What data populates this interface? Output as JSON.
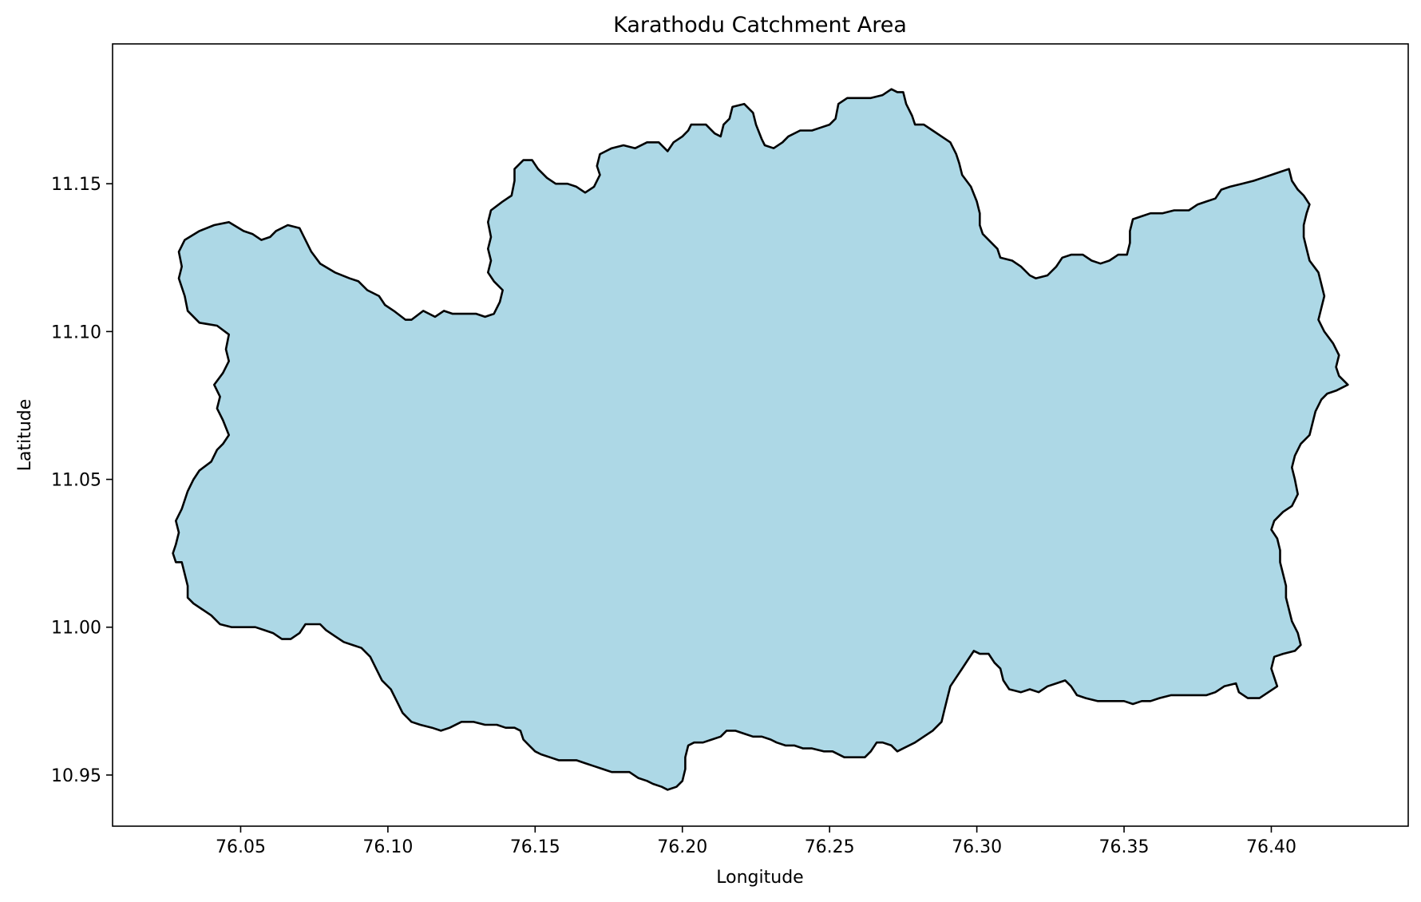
{
  "chart_data": {
    "type": "map",
    "title": "Karathodu Catchment Area",
    "xlabel": "Longitude",
    "ylabel": "Latitude",
    "xlim": [
      76.0065,
      76.4465
    ],
    "ylim": [
      10.9327,
      11.1973
    ],
    "x_ticks": [
      {
        "value": 76.05,
        "label": "76.05"
      },
      {
        "value": 76.1,
        "label": "76.10"
      },
      {
        "value": 76.15,
        "label": "76.15"
      },
      {
        "value": 76.2,
        "label": "76.20"
      },
      {
        "value": 76.25,
        "label": "76.25"
      },
      {
        "value": 76.3,
        "label": "76.30"
      },
      {
        "value": 76.35,
        "label": "76.35"
      },
      {
        "value": 76.4,
        "label": "76.40"
      }
    ],
    "y_ticks": [
      {
        "value": 10.95,
        "label": "10.95"
      },
      {
        "value": 11.0,
        "label": "11.00"
      },
      {
        "value": 11.05,
        "label": "11.05"
      },
      {
        "value": 11.1,
        "label": "11.10"
      },
      {
        "value": 11.15,
        "label": "11.15"
      }
    ],
    "grid": false,
    "fill_color": "#add8e6",
    "edge_color": "#000000",
    "boundary": [
      [
        76.028,
        11.036
      ],
      [
        76.03,
        11.04
      ],
      [
        76.032,
        11.046
      ],
      [
        76.034,
        11.05
      ],
      [
        76.036,
        11.053
      ],
      [
        76.04,
        11.056
      ],
      [
        76.042,
        11.06
      ],
      [
        76.044,
        11.062
      ],
      [
        76.046,
        11.065
      ],
      [
        76.044,
        11.07
      ],
      [
        76.042,
        11.074
      ],
      [
        76.043,
        11.078
      ],
      [
        76.041,
        11.082
      ],
      [
        76.044,
        11.086
      ],
      [
        76.046,
        11.09
      ],
      [
        76.045,
        11.094
      ],
      [
        76.046,
        11.099
      ],
      [
        76.042,
        11.102
      ],
      [
        76.036,
        11.103
      ],
      [
        76.032,
        11.107
      ],
      [
        76.031,
        11.112
      ],
      [
        76.029,
        11.118
      ],
      [
        76.03,
        11.122
      ],
      [
        76.029,
        11.127
      ],
      [
        76.031,
        11.131
      ],
      [
        76.036,
        11.134
      ],
      [
        76.041,
        11.136
      ],
      [
        76.046,
        11.137
      ],
      [
        76.051,
        11.134
      ],
      [
        76.054,
        11.133
      ],
      [
        76.057,
        11.131
      ],
      [
        76.06,
        11.132
      ],
      [
        76.062,
        11.134
      ],
      [
        76.066,
        11.136
      ],
      [
        76.07,
        11.135
      ],
      [
        76.072,
        11.131
      ],
      [
        76.074,
        11.127
      ],
      [
        76.077,
        11.123
      ],
      [
        76.082,
        11.12
      ],
      [
        76.087,
        11.118
      ],
      [
        76.09,
        11.117
      ],
      [
        76.093,
        11.114
      ],
      [
        76.097,
        11.112
      ],
      [
        76.099,
        11.109
      ],
      [
        76.102,
        11.107
      ],
      [
        76.106,
        11.104
      ],
      [
        76.108,
        11.104
      ],
      [
        76.112,
        11.107
      ],
      [
        76.116,
        11.105
      ],
      [
        76.119,
        11.107
      ],
      [
        76.122,
        11.106
      ],
      [
        76.126,
        11.106
      ],
      [
        76.13,
        11.106
      ],
      [
        76.133,
        11.105
      ],
      [
        76.136,
        11.106
      ],
      [
        76.138,
        11.11
      ],
      [
        76.139,
        11.114
      ],
      [
        76.136,
        11.117
      ],
      [
        76.134,
        11.12
      ],
      [
        76.135,
        11.124
      ],
      [
        76.134,
        11.128
      ],
      [
        76.135,
        11.132
      ],
      [
        76.134,
        11.137
      ],
      [
        76.135,
        11.141
      ],
      [
        76.139,
        11.144
      ],
      [
        76.142,
        11.146
      ],
      [
        76.143,
        11.151
      ],
      [
        76.143,
        11.155
      ],
      [
        76.146,
        11.158
      ],
      [
        76.149,
        11.158
      ],
      [
        76.151,
        11.155
      ],
      [
        76.154,
        11.152
      ],
      [
        76.157,
        11.15
      ],
      [
        76.161,
        11.15
      ],
      [
        76.164,
        11.149
      ],
      [
        76.167,
        11.147
      ],
      [
        76.17,
        11.149
      ],
      [
        76.172,
        11.153
      ],
      [
        76.171,
        11.156
      ],
      [
        76.172,
        11.16
      ],
      [
        76.176,
        11.162
      ],
      [
        76.18,
        11.163
      ],
      [
        76.184,
        11.162
      ],
      [
        76.188,
        11.164
      ],
      [
        76.192,
        11.164
      ],
      [
        76.195,
        11.161
      ],
      [
        76.197,
        11.164
      ],
      [
        76.2,
        11.166
      ],
      [
        76.202,
        11.168
      ],
      [
        76.203,
        11.17
      ],
      [
        76.208,
        11.17
      ],
      [
        76.211,
        11.167
      ],
      [
        76.213,
        11.166
      ],
      [
        76.214,
        11.17
      ],
      [
        76.216,
        11.172
      ],
      [
        76.217,
        11.176
      ],
      [
        76.221,
        11.177
      ],
      [
        76.224,
        11.174
      ],
      [
        76.225,
        11.17
      ],
      [
        76.227,
        11.165
      ],
      [
        76.228,
        11.163
      ],
      [
        76.231,
        11.162
      ],
      [
        76.234,
        11.164
      ],
      [
        76.236,
        11.166
      ],
      [
        76.24,
        11.168
      ],
      [
        76.244,
        11.168
      ],
      [
        76.247,
        11.169
      ],
      [
        76.25,
        11.17
      ],
      [
        76.252,
        11.172
      ],
      [
        76.253,
        11.177
      ],
      [
        76.256,
        11.179
      ],
      [
        76.26,
        11.179
      ],
      [
        76.264,
        11.179
      ],
      [
        76.268,
        11.18
      ],
      [
        76.271,
        11.182
      ],
      [
        76.273,
        11.181
      ],
      [
        76.275,
        11.181
      ],
      [
        76.276,
        11.177
      ],
      [
        76.278,
        11.173
      ],
      [
        76.279,
        11.17
      ],
      [
        76.282,
        11.17
      ],
      [
        76.285,
        11.168
      ],
      [
        76.288,
        11.166
      ],
      [
        76.291,
        11.164
      ],
      [
        76.293,
        11.16
      ],
      [
        76.294,
        11.157
      ],
      [
        76.295,
        11.153
      ],
      [
        76.298,
        11.149
      ],
      [
        76.3,
        11.144
      ],
      [
        76.301,
        11.14
      ],
      [
        76.301,
        11.136
      ],
      [
        76.302,
        11.133
      ],
      [
        76.305,
        11.13
      ],
      [
        76.307,
        11.128
      ],
      [
        76.308,
        11.125
      ],
      [
        76.312,
        11.124
      ],
      [
        76.315,
        11.122
      ],
      [
        76.318,
        11.119
      ],
      [
        76.32,
        11.118
      ],
      [
        76.324,
        11.119
      ],
      [
        76.327,
        11.122
      ],
      [
        76.329,
        11.125
      ],
      [
        76.332,
        11.126
      ],
      [
        76.336,
        11.126
      ],
      [
        76.339,
        11.124
      ],
      [
        76.342,
        11.123
      ],
      [
        76.345,
        11.124
      ],
      [
        76.348,
        11.126
      ],
      [
        76.351,
        11.126
      ],
      [
        76.352,
        11.13
      ],
      [
        76.352,
        11.134
      ],
      [
        76.353,
        11.138
      ],
      [
        76.356,
        11.139
      ],
      [
        76.359,
        11.14
      ],
      [
        76.363,
        11.14
      ],
      [
        76.367,
        11.141
      ],
      [
        76.372,
        11.141
      ],
      [
        76.375,
        11.143
      ],
      [
        76.378,
        11.144
      ],
      [
        76.381,
        11.145
      ],
      [
        76.383,
        11.148
      ],
      [
        76.386,
        11.149
      ],
      [
        76.39,
        11.15
      ],
      [
        76.394,
        11.151
      ],
      [
        76.397,
        11.152
      ],
      [
        76.4,
        11.153
      ],
      [
        76.403,
        11.154
      ],
      [
        76.406,
        11.155
      ],
      [
        76.407,
        11.151
      ],
      [
        76.409,
        11.148
      ],
      [
        76.411,
        11.146
      ],
      [
        76.413,
        11.143
      ],
      [
        76.412,
        11.14
      ],
      [
        76.411,
        11.136
      ],
      [
        76.411,
        11.132
      ],
      [
        76.412,
        11.128
      ],
      [
        76.413,
        11.124
      ],
      [
        76.416,
        11.12
      ],
      [
        76.417,
        11.116
      ],
      [
        76.418,
        11.112
      ],
      [
        76.417,
        11.108
      ],
      [
        76.416,
        11.104
      ],
      [
        76.418,
        11.1
      ],
      [
        76.421,
        11.096
      ],
      [
        76.423,
        11.092
      ],
      [
        76.422,
        11.088
      ],
      [
        76.423,
        11.085
      ],
      [
        76.425,
        11.083
      ],
      [
        76.426,
        11.082
      ],
      [
        76.422,
        11.08
      ],
      [
        76.419,
        11.079
      ],
      [
        76.417,
        11.077
      ],
      [
        76.415,
        11.073
      ],
      [
        76.414,
        11.069
      ],
      [
        76.413,
        11.065
      ],
      [
        76.41,
        11.062
      ],
      [
        76.408,
        11.058
      ],
      [
        76.407,
        11.054
      ],
      [
        76.408,
        11.05
      ],
      [
        76.409,
        11.045
      ],
      [
        76.407,
        11.041
      ],
      [
        76.404,
        11.039
      ],
      [
        76.401,
        11.036
      ],
      [
        76.4,
        11.033
      ],
      [
        76.402,
        11.03
      ],
      [
        76.403,
        11.026
      ],
      [
        76.403,
        11.022
      ],
      [
        76.404,
        11.018
      ],
      [
        76.405,
        11.014
      ],
      [
        76.405,
        11.01
      ],
      [
        76.406,
        11.006
      ],
      [
        76.407,
        11.002
      ],
      [
        76.409,
        10.998
      ],
      [
        76.41,
        10.994
      ],
      [
        76.408,
        10.992
      ],
      [
        76.404,
        10.991
      ],
      [
        76.401,
        10.99
      ],
      [
        76.4,
        10.986
      ],
      [
        76.401,
        10.983
      ],
      [
        76.402,
        10.98
      ],
      [
        76.399,
        10.978
      ],
      [
        76.396,
        10.976
      ],
      [
        76.392,
        10.976
      ],
      [
        76.389,
        10.978
      ],
      [
        76.388,
        10.981
      ],
      [
        76.384,
        10.98
      ],
      [
        76.381,
        10.978
      ],
      [
        76.378,
        10.977
      ],
      [
        76.375,
        10.977
      ],
      [
        76.372,
        10.977
      ],
      [
        76.369,
        10.977
      ],
      [
        76.366,
        10.977
      ],
      [
        76.362,
        10.976
      ],
      [
        76.359,
        10.975
      ],
      [
        76.356,
        10.975
      ],
      [
        76.353,
        10.974
      ],
      [
        76.35,
        10.975
      ],
      [
        76.347,
        10.975
      ],
      [
        76.344,
        10.975
      ],
      [
        76.341,
        10.975
      ],
      [
        76.337,
        10.976
      ],
      [
        76.334,
        10.977
      ],
      [
        76.332,
        10.98
      ],
      [
        76.33,
        10.982
      ],
      [
        76.327,
        10.981
      ],
      [
        76.324,
        10.98
      ],
      [
        76.321,
        10.978
      ],
      [
        76.318,
        10.979
      ],
      [
        76.315,
        10.978
      ],
      [
        76.311,
        10.979
      ],
      [
        76.309,
        10.982
      ],
      [
        76.308,
        10.986
      ],
      [
        76.306,
        10.988
      ],
      [
        76.304,
        10.991
      ],
      [
        76.301,
        10.991
      ],
      [
        76.299,
        10.992
      ],
      [
        76.297,
        10.989
      ],
      [
        76.295,
        10.986
      ],
      [
        76.293,
        10.983
      ],
      [
        76.291,
        10.98
      ],
      [
        76.29,
        10.976
      ],
      [
        76.289,
        10.972
      ],
      [
        76.288,
        10.968
      ],
      [
        76.285,
        10.965
      ],
      [
        76.282,
        10.963
      ],
      [
        76.279,
        10.961
      ],
      [
        76.275,
        10.959
      ],
      [
        76.273,
        10.958
      ],
      [
        76.271,
        10.96
      ],
      [
        76.268,
        10.961
      ],
      [
        76.266,
        10.961
      ],
      [
        76.264,
        10.958
      ],
      [
        76.262,
        10.956
      ],
      [
        76.259,
        10.956
      ],
      [
        76.255,
        10.956
      ],
      [
        76.251,
        10.958
      ],
      [
        76.248,
        10.958
      ],
      [
        76.244,
        10.959
      ],
      [
        76.241,
        10.959
      ],
      [
        76.238,
        10.96
      ],
      [
        76.235,
        10.96
      ],
      [
        76.232,
        10.961
      ],
      [
        76.23,
        10.962
      ],
      [
        76.227,
        10.963
      ],
      [
        76.224,
        10.963
      ],
      [
        76.221,
        10.964
      ],
      [
        76.218,
        10.965
      ],
      [
        76.215,
        10.965
      ],
      [
        76.213,
        10.963
      ],
      [
        76.21,
        10.962
      ],
      [
        76.207,
        10.961
      ],
      [
        76.204,
        10.961
      ],
      [
        76.202,
        10.96
      ],
      [
        76.201,
        10.956
      ],
      [
        76.201,
        10.952
      ],
      [
        76.2,
        10.948
      ],
      [
        76.198,
        10.946
      ],
      [
        76.195,
        10.945
      ],
      [
        76.193,
        10.946
      ],
      [
        76.19,
        10.947
      ],
      [
        76.188,
        10.948
      ],
      [
        76.185,
        10.949
      ],
      [
        76.182,
        10.951
      ],
      [
        76.179,
        10.951
      ],
      [
        76.176,
        10.951
      ],
      [
        76.173,
        10.952
      ],
      [
        76.17,
        10.953
      ],
      [
        76.167,
        10.954
      ],
      [
        76.164,
        10.955
      ],
      [
        76.161,
        10.955
      ],
      [
        76.158,
        10.955
      ],
      [
        76.155,
        10.956
      ],
      [
        76.152,
        10.957
      ],
      [
        76.15,
        10.958
      ],
      [
        76.148,
        10.96
      ],
      [
        76.146,
        10.962
      ],
      [
        76.145,
        10.965
      ],
      [
        76.143,
        10.966
      ],
      [
        76.14,
        10.966
      ],
      [
        76.137,
        10.967
      ],
      [
        76.133,
        10.967
      ],
      [
        76.129,
        10.968
      ],
      [
        76.125,
        10.968
      ],
      [
        76.121,
        10.966
      ],
      [
        76.118,
        10.965
      ],
      [
        76.115,
        10.966
      ],
      [
        76.111,
        10.967
      ],
      [
        76.108,
        10.968
      ],
      [
        76.105,
        10.971
      ],
      [
        76.103,
        10.975
      ],
      [
        76.101,
        10.979
      ],
      [
        76.098,
        10.982
      ],
      [
        76.096,
        10.986
      ],
      [
        76.094,
        10.99
      ],
      [
        76.091,
        10.993
      ],
      [
        76.088,
        10.994
      ],
      [
        76.085,
        10.995
      ],
      [
        76.082,
        10.997
      ],
      [
        76.079,
        10.999
      ],
      [
        76.077,
        11.001
      ],
      [
        76.074,
        11.001
      ],
      [
        76.072,
        11.001
      ],
      [
        76.07,
        10.998
      ],
      [
        76.067,
        10.996
      ],
      [
        76.064,
        10.996
      ],
      [
        76.061,
        10.998
      ],
      [
        76.058,
        10.999
      ],
      [
        76.055,
        11.0
      ],
      [
        76.051,
        11.0
      ],
      [
        76.047,
        11.0
      ],
      [
        76.043,
        11.001
      ],
      [
        76.04,
        11.004
      ],
      [
        76.037,
        11.006
      ],
      [
        76.034,
        11.008
      ],
      [
        76.032,
        11.01
      ],
      [
        76.032,
        11.014
      ],
      [
        76.031,
        11.018
      ],
      [
        76.03,
        11.022
      ],
      [
        76.028,
        11.022
      ],
      [
        76.027,
        11.025
      ],
      [
        76.028,
        11.028
      ],
      [
        76.029,
        11.032
      ]
    ]
  }
}
